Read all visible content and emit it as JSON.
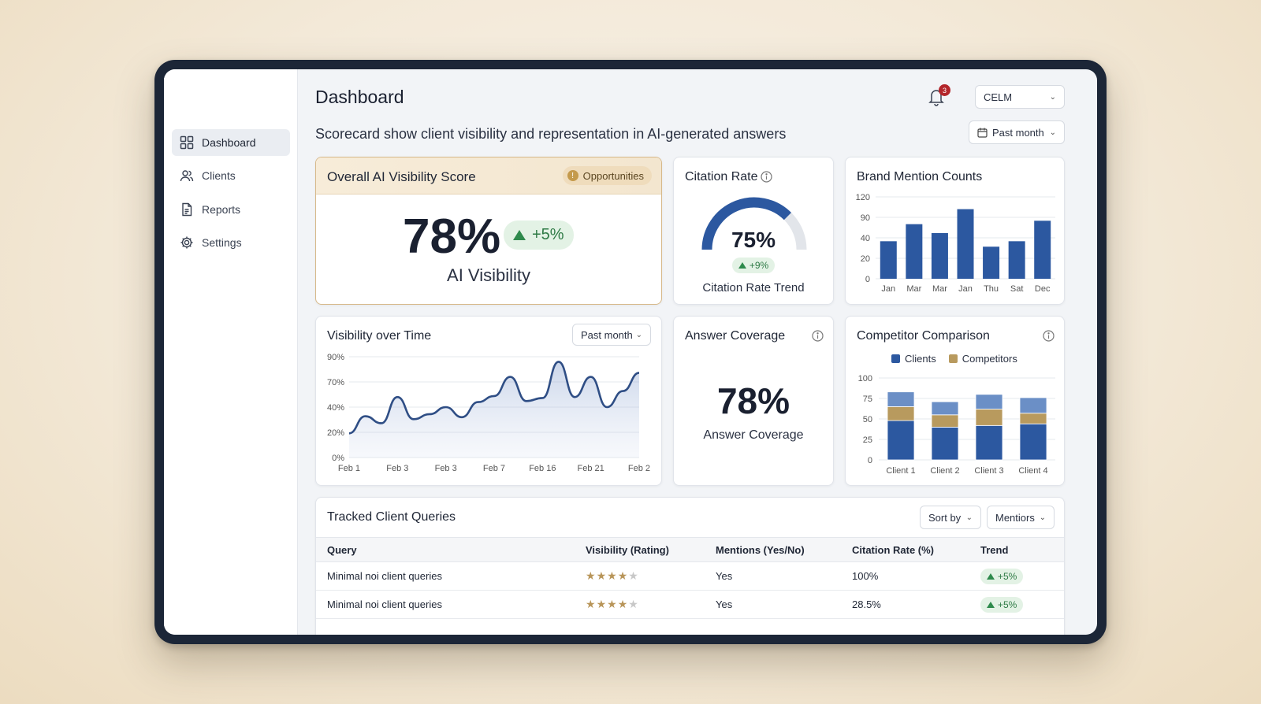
{
  "sidebar": {
    "items": [
      {
        "label": "Dashboard",
        "icon": "grid-icon",
        "active": true
      },
      {
        "label": "Clients",
        "icon": "users-icon",
        "active": false
      },
      {
        "label": "Reports",
        "icon": "document-icon",
        "active": false
      },
      {
        "label": "Settings",
        "icon": "gear-icon",
        "active": false
      }
    ]
  },
  "header": {
    "title": "Dashboard",
    "subtitle": "Scorecard show client visibility and representation in AI-generated answers",
    "notification_count": "3",
    "account_select": "CELM",
    "period_select": "Past month"
  },
  "visibility_score": {
    "title": "Overall AI Visibility Score",
    "badge": "Opportunities",
    "value": "78%",
    "change": "+5%",
    "label": "AI Visibility"
  },
  "citation_rate": {
    "title": "Citation Rate",
    "value": "75%",
    "value_fraction": 0.75,
    "change": "+9%",
    "label": "Citation Rate Trend"
  },
  "answer_coverage": {
    "title": "Answer Coverage",
    "value": "78%",
    "label": "Answer Coverage"
  },
  "visibility_over_time": {
    "title": "Visibility over Time",
    "period_select": "Past month"
  },
  "colors": {
    "primary_blue": "#2c58a0",
    "light_blue": "#6b8fc6",
    "gold": "#b89a5e",
    "positive_green": "#2e8a4c"
  },
  "chart_data": [
    {
      "type": "bar",
      "title": "Brand Mention Counts",
      "categories": [
        "Jan",
        "Mar",
        "Mar",
        "Jan",
        "Thu",
        "Sat",
        "Dec"
      ],
      "values": [
        55,
        80,
        67,
        102,
        47,
        55,
        85
      ],
      "ylim": [
        0,
        120
      ],
      "yticks": [
        "120",
        "90",
        "40",
        "20",
        "0"
      ],
      "grid": true
    },
    {
      "type": "line",
      "title": "Visibility over Time",
      "x_labels": [
        "Feb 1",
        "Feb 3",
        "Feb 3",
        "Feb 7",
        "Feb 16",
        "Feb 21",
        "Feb 2"
      ],
      "yticks": [
        "90%",
        "70%",
        "40%",
        "20%",
        "0%"
      ],
      "values": [
        24,
        41,
        34,
        60,
        38,
        43,
        50,
        40,
        55,
        61,
        80,
        56,
        59,
        95,
        60,
        80,
        50,
        66,
        84
      ],
      "ylim": [
        0,
        100
      ],
      "grid": true
    },
    {
      "type": "bar",
      "title": "Competitor Comparison",
      "stacked": true,
      "legend": [
        "Clients",
        "Competitors"
      ],
      "legend_position": "top",
      "categories": [
        "Client 1",
        "Client 2",
        "Client 3",
        "Client 4"
      ],
      "series": [
        {
          "name": "Clients",
          "values": [
            48,
            40,
            42,
            44
          ]
        },
        {
          "name": "Competitors",
          "values": [
            17,
            15,
            20,
            13
          ]
        },
        {
          "values": [
            18,
            16,
            18,
            19
          ]
        }
      ],
      "ylim": [
        0,
        100
      ],
      "yticks": [
        "100",
        "75",
        "50",
        "25",
        "0"
      ],
      "grid": true
    }
  ],
  "queries": {
    "title": "Tracked Client Queries",
    "sort_label": "Sort by",
    "filter_label": "Mentiors",
    "columns": [
      "Query",
      "Visibility (Rating)",
      "Mentions (Yes/No)",
      "Citation Rate (%)",
      "Trend"
    ],
    "rows": [
      {
        "query": "Minimal noi client queries",
        "rating": 4,
        "mentions": "Yes",
        "citation": "100%",
        "trend": "+5%"
      },
      {
        "query": "Minimal noi client queries",
        "rating": 4,
        "mentions": "Yes",
        "citation": "28.5%",
        "trend": "+5%"
      }
    ]
  }
}
